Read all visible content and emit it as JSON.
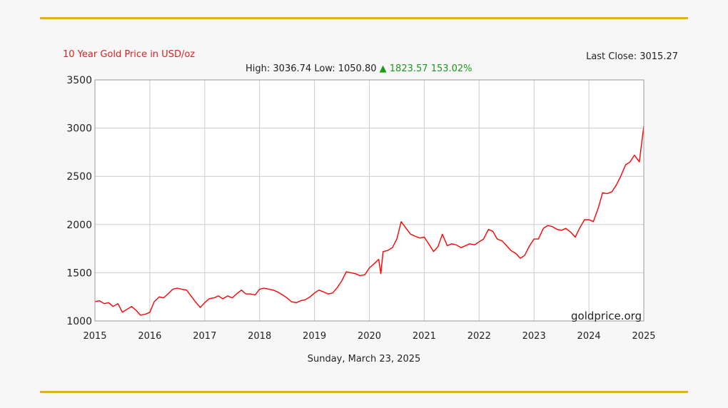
{
  "chart_data": {
    "type": "line",
    "title": "10 Year Gold Price in USD/oz",
    "last_close_label": "Last Close:",
    "last_close": "3015.27",
    "high_label": "High:",
    "high": "3036.74",
    "low_label": "Low:",
    "low": "1050.80",
    "change_symbol": "▲",
    "change": "1823.57",
    "change_pct": "153.02%",
    "source": "goldprice.org",
    "date_caption": "Sunday, March 23, 2025",
    "xlabel": "",
    "ylabel": "",
    "x_ticks": [
      "2015",
      "2016",
      "2017",
      "2018",
      "2019",
      "2020",
      "2021",
      "2022",
      "2023",
      "2024",
      "2025"
    ],
    "y_ticks": [
      "1000",
      "1500",
      "2000",
      "2500",
      "3000",
      "3500"
    ],
    "xlim": [
      2015,
      2025
    ],
    "ylim": [
      1000,
      3500
    ],
    "grid": true,
    "line_color": "#ff0000",
    "series": [
      {
        "x": [
          2015.0,
          2015.08,
          2015.17,
          2015.25,
          2015.33,
          2015.42,
          2015.5,
          2015.58,
          2015.67,
          2015.75,
          2015.83,
          2015.92,
          2016.0,
          2016.08,
          2016.17,
          2016.25,
          2016.33,
          2016.42,
          2016.5,
          2016.58,
          2016.67,
          2016.75,
          2016.83,
          2016.92,
          2017.0,
          2017.08,
          2017.17,
          2017.25,
          2017.33,
          2017.42,
          2017.5,
          2017.58,
          2017.67,
          2017.75,
          2017.83,
          2017.92,
          2018.0,
          2018.08,
          2018.17,
          2018.25,
          2018.33,
          2018.42,
          2018.5,
          2018.58,
          2018.67,
          2018.75,
          2018.83,
          2018.92,
          2019.0,
          2019.08,
          2019.17,
          2019.25,
          2019.33,
          2019.42,
          2019.5,
          2019.58,
          2019.67,
          2019.75,
          2019.83,
          2019.92,
          2020.0,
          2020.08,
          2020.17,
          2020.21,
          2020.25,
          2020.33,
          2020.42,
          2020.5,
          2020.58,
          2020.67,
          2020.75,
          2020.83,
          2020.92,
          2021.0,
          2021.08,
          2021.17,
          2021.25,
          2021.33,
          2021.42,
          2021.5,
          2021.58,
          2021.67,
          2021.75,
          2021.83,
          2021.92,
          2022.0,
          2022.08,
          2022.17,
          2022.25,
          2022.33,
          2022.42,
          2022.5,
          2022.58,
          2022.67,
          2022.75,
          2022.83,
          2022.92,
          2023.0,
          2023.08,
          2023.17,
          2023.25,
          2023.33,
          2023.42,
          2023.5,
          2023.58,
          2023.67,
          2023.75,
          2023.83,
          2023.92,
          2024.0,
          2024.08,
          2024.17,
          2024.25,
          2024.33,
          2024.42,
          2024.5,
          2024.58,
          2024.67,
          2024.75,
          2024.83,
          2024.92,
          2025.0
        ],
        "y": [
          1200,
          1210,
          1180,
          1190,
          1150,
          1180,
          1090,
          1120,
          1150,
          1110,
          1060,
          1070,
          1090,
          1200,
          1250,
          1240,
          1280,
          1330,
          1340,
          1330,
          1320,
          1260,
          1200,
          1140,
          1190,
          1230,
          1240,
          1260,
          1230,
          1260,
          1240,
          1280,
          1320,
          1280,
          1280,
          1270,
          1330,
          1340,
          1330,
          1320,
          1300,
          1270,
          1240,
          1200,
          1190,
          1210,
          1220,
          1250,
          1290,
          1320,
          1300,
          1280,
          1290,
          1350,
          1420,
          1510,
          1500,
          1490,
          1470,
          1480,
          1550,
          1590,
          1640,
          1490,
          1720,
          1730,
          1760,
          1850,
          2030,
          1960,
          1900,
          1880,
          1860,
          1870,
          1800,
          1720,
          1770,
          1900,
          1780,
          1800,
          1790,
          1760,
          1780,
          1800,
          1790,
          1820,
          1850,
          1950,
          1930,
          1850,
          1830,
          1780,
          1730,
          1700,
          1650,
          1680,
          1780,
          1850,
          1850,
          1960,
          1990,
          1980,
          1950,
          1940,
          1960,
          1920,
          1870,
          1960,
          2050,
          2050,
          2030,
          2170,
          2330,
          2320,
          2340,
          2410,
          2500,
          2620,
          2650,
          2720,
          2650,
          3020
        ]
      }
    ]
  }
}
